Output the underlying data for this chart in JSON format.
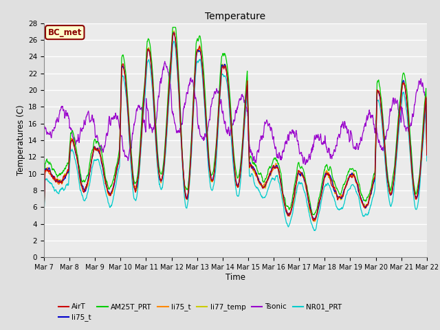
{
  "title": "Temperature",
  "ylabel": "Temperatures (C)",
  "xlabel": "Time",
  "annotation": "BC_met",
  "ylim": [
    0,
    28
  ],
  "yticks": [
    0,
    2,
    4,
    6,
    8,
    10,
    12,
    14,
    16,
    18,
    20,
    22,
    24,
    26,
    28
  ],
  "xtick_labels": [
    "Mar 7",
    "Mar 8",
    "Mar 9",
    "Mar 10",
    "Mar 11",
    "Mar 12",
    "Mar 13",
    "Mar 14",
    "Mar 15",
    "Mar 16",
    "Mar 17",
    "Mar 18",
    "Mar 19",
    "Mar 20",
    "Mar 21",
    "Mar 22"
  ],
  "series": [
    {
      "name": "AirT",
      "color": "#cc0000"
    },
    {
      "name": "li75_t",
      "color": "#0000cc"
    },
    {
      "name": "AM25T_PRT",
      "color": "#00cc00"
    },
    {
      "name": "li75_t",
      "color": "#ff8800"
    },
    {
      "name": "li77_temp",
      "color": "#cccc00"
    },
    {
      "name": "Tsonic",
      "color": "#9900cc"
    },
    {
      "name": "NR01_PRT",
      "color": "#00cccc"
    }
  ],
  "bg_color": "#e0e0e0",
  "plot_bg": "#ebebeb"
}
